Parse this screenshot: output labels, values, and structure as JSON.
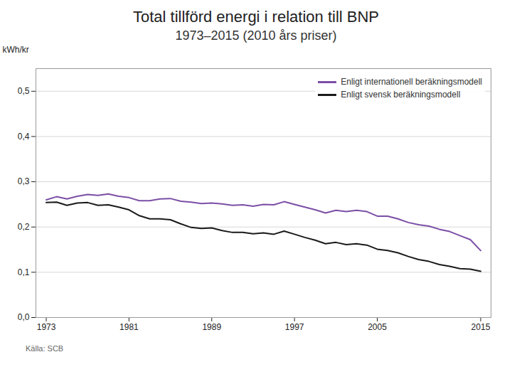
{
  "chart_data": {
    "type": "line",
    "title": "Total tillförd energi i relation till BNP",
    "subtitle": "1973–2015 (2010 års priser)",
    "ylabel": "kWh/kr",
    "source": "Källa: SCB",
    "x": [
      1973,
      1974,
      1975,
      1976,
      1977,
      1978,
      1979,
      1980,
      1981,
      1982,
      1983,
      1984,
      1985,
      1986,
      1987,
      1988,
      1989,
      1990,
      1991,
      1992,
      1993,
      1994,
      1995,
      1996,
      1997,
      1998,
      1999,
      2000,
      2001,
      2002,
      2003,
      2004,
      2005,
      2006,
      2007,
      2008,
      2009,
      2010,
      2011,
      2012,
      2013,
      2014,
      2015
    ],
    "series": [
      {
        "name": "Enligt internationell beräkningsmodell",
        "color": "#7B4FA6",
        "values": [
          0.26,
          0.267,
          0.262,
          0.268,
          0.272,
          0.27,
          0.273,
          0.268,
          0.265,
          0.258,
          0.258,
          0.262,
          0.263,
          0.257,
          0.255,
          0.252,
          0.253,
          0.251,
          0.248,
          0.249,
          0.246,
          0.25,
          0.249,
          0.256,
          0.25,
          0.244,
          0.238,
          0.231,
          0.237,
          0.234,
          0.237,
          0.234,
          0.224,
          0.224,
          0.218,
          0.21,
          0.205,
          0.202,
          0.195,
          0.19,
          0.181,
          0.172,
          0.148
        ]
      },
      {
        "name": "Enligt svensk beräkningsmodell",
        "color": "#1a1a1a",
        "values": [
          0.254,
          0.255,
          0.248,
          0.253,
          0.254,
          0.248,
          0.249,
          0.244,
          0.238,
          0.225,
          0.218,
          0.218,
          0.216,
          0.207,
          0.199,
          0.197,
          0.198,
          0.192,
          0.188,
          0.188,
          0.185,
          0.187,
          0.184,
          0.191,
          0.184,
          0.177,
          0.171,
          0.163,
          0.166,
          0.161,
          0.163,
          0.16,
          0.151,
          0.148,
          0.143,
          0.135,
          0.128,
          0.124,
          0.117,
          0.113,
          0.108,
          0.107,
          0.102
        ]
      }
    ],
    "xlim": [
      1972,
      2016
    ],
    "xticks": [
      1973,
      1981,
      1989,
      1997,
      2005,
      2015
    ],
    "ylim": [
      0.0,
      0.55
    ],
    "yticks": [
      {
        "value": 0.0,
        "label": "0,0"
      },
      {
        "value": 0.1,
        "label": "0,1"
      },
      {
        "value": 0.2,
        "label": "0,2"
      },
      {
        "value": 0.3,
        "label": "0,3"
      },
      {
        "value": 0.4,
        "label": "0,4"
      },
      {
        "value": 0.5,
        "label": "0,5"
      }
    ],
    "grid": true,
    "legend": "upper right"
  }
}
